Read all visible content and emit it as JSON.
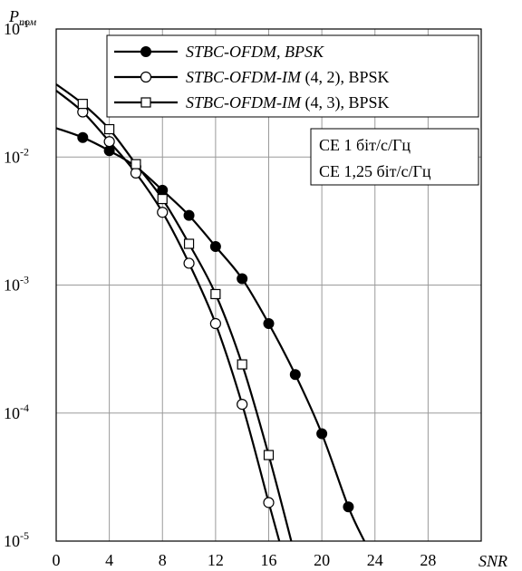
{
  "chart_data": {
    "type": "line",
    "title": "",
    "ylabel_main": "P",
    "ylabel_sub": "пом",
    "xlabel": "SNR",
    "yscale": "log",
    "xlim": [
      0,
      32
    ],
    "ylim": [
      1e-05,
      0.1
    ],
    "grid": true,
    "xticks": [
      0,
      4,
      8,
      12,
      16,
      20,
      24,
      28
    ],
    "xtick_labels": [
      "0",
      "4",
      "8",
      "12",
      "16",
      "20",
      "24",
      "28"
    ],
    "yticks": [
      0.1,
      0.01,
      0.001,
      0.0001,
      1e-05
    ],
    "ytick_labels": [
      {
        "base": "10",
        "exp": "-1"
      },
      {
        "base": "10",
        "exp": "-2"
      },
      {
        "base": "10",
        "exp": "-3"
      },
      {
        "base": "10",
        "exp": "-4"
      },
      {
        "base": "10",
        "exp": "-5"
      }
    ],
    "legend_position": "top-right",
    "series": [
      {
        "name_italic": "STBC-OFDM, BPSK",
        "name_rest": "",
        "marker": "filled-circle",
        "color": "#000000",
        "points": [
          [
            2,
            0.0142
          ],
          [
            4,
            0.0112
          ],
          [
            6,
            0.0084
          ],
          [
            8,
            0.0055
          ],
          [
            10,
            0.0035
          ],
          [
            12,
            0.002
          ],
          [
            14,
            0.00112
          ],
          [
            16,
            0.0005
          ],
          [
            18,
            0.0002
          ],
          [
            20,
            6.9e-05
          ],
          [
            22,
            1.85e-05
          ]
        ],
        "curve": [
          [
            0,
            0.0168
          ],
          [
            2,
            0.0142
          ],
          [
            4,
            0.0112
          ],
          [
            6,
            0.0084
          ],
          [
            8,
            0.0055
          ],
          [
            10,
            0.0035
          ],
          [
            12,
            0.002
          ],
          [
            14,
            0.00112
          ],
          [
            16,
            0.0005
          ],
          [
            18,
            0.0002
          ],
          [
            20,
            6.9e-05
          ],
          [
            22,
            1.85e-05
          ],
          [
            23.2,
            1e-05
          ]
        ]
      },
      {
        "name_italic": "STBC-OFDM-IM",
        "name_rest": " (4, 2), BPSK",
        "marker": "open-circle",
        "color": "#000000",
        "points": [
          [
            2,
            0.0225
          ],
          [
            4,
            0.0132
          ],
          [
            6,
            0.0075
          ],
          [
            8,
            0.0037
          ],
          [
            10,
            0.00148
          ],
          [
            12,
            0.0005
          ],
          [
            14,
            0.000117
          ],
          [
            16,
            2e-05
          ]
        ],
        "curve": [
          [
            0,
            0.033
          ],
          [
            2,
            0.0225
          ],
          [
            4,
            0.0132
          ],
          [
            6,
            0.0075
          ],
          [
            8,
            0.0037
          ],
          [
            10,
            0.00148
          ],
          [
            12,
            0.0005
          ],
          [
            14,
            0.000117
          ],
          [
            16,
            2e-05
          ],
          [
            16.8,
            1e-05
          ]
        ]
      },
      {
        "name_italic": "STBC-OFDM-IM",
        "name_rest": " (4, 3), BPSK",
        "marker": "open-square",
        "color": "#000000",
        "points": [
          [
            2,
            0.026
          ],
          [
            4,
            0.0165
          ],
          [
            6,
            0.0088
          ],
          [
            8,
            0.0047
          ],
          [
            10,
            0.0021
          ],
          [
            12,
            0.00085
          ],
          [
            14,
            0.00024
          ],
          [
            16,
            4.7e-05
          ]
        ],
        "curve": [
          [
            0,
            0.037
          ],
          [
            2,
            0.026
          ],
          [
            4,
            0.0165
          ],
          [
            6,
            0.0088
          ],
          [
            8,
            0.0047
          ],
          [
            10,
            0.0021
          ],
          [
            12,
            0.00085
          ],
          [
            14,
            0.00024
          ],
          [
            16,
            4.7e-05
          ],
          [
            17.7,
            1e-05
          ]
        ]
      }
    ],
    "annotations": [
      "СЕ 1 біт/с/Гц",
      "СЕ 1,25 біт/с/Гц"
    ]
  }
}
